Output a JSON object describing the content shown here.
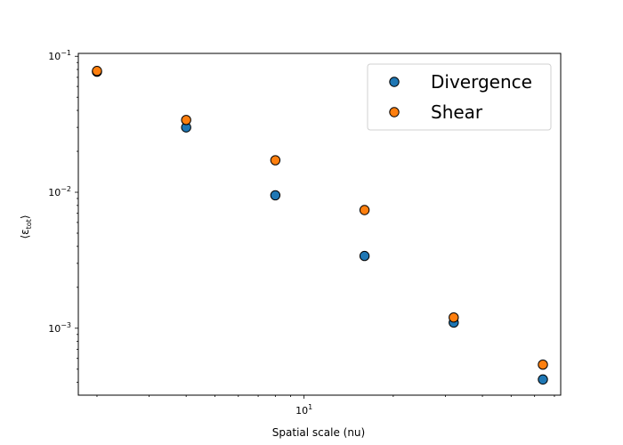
{
  "chart_data": {
    "type": "scatter",
    "title": "",
    "xlabel": "Spatial scale (nu)",
    "ylabel": "⟨ε",
    "ylabel_subscript": "tot",
    "ylabel_close": "⟩",
    "x_scale": "log",
    "y_scale": "log",
    "xlim": [
      1.73,
      73.5
    ],
    "ylim": [
      0.000322,
      0.105
    ],
    "grid": false,
    "legend_position": "top-right",
    "x_ticks": [
      {
        "value": 10,
        "base": "10",
        "exp": "1"
      }
    ],
    "y_ticks": [
      {
        "value": 0.1,
        "base": "10",
        "exp": "−1"
      },
      {
        "value": 0.01,
        "base": "10",
        "exp": "−2"
      },
      {
        "value": 0.001,
        "base": "10",
        "exp": "−3"
      }
    ],
    "series": [
      {
        "name": "Divergence",
        "color": "#1f77b4",
        "x": [
          2,
          4,
          8,
          16,
          32,
          64
        ],
        "y": [
          0.077,
          0.03,
          0.0095,
          0.0034,
          0.0011,
          0.00042
        ]
      },
      {
        "name": "Shear",
        "color": "#ff7f0e",
        "x": [
          2,
          4,
          8,
          16,
          32,
          64
        ],
        "y": [
          0.078,
          0.034,
          0.0172,
          0.0074,
          0.0012,
          0.00054
        ]
      }
    ]
  }
}
